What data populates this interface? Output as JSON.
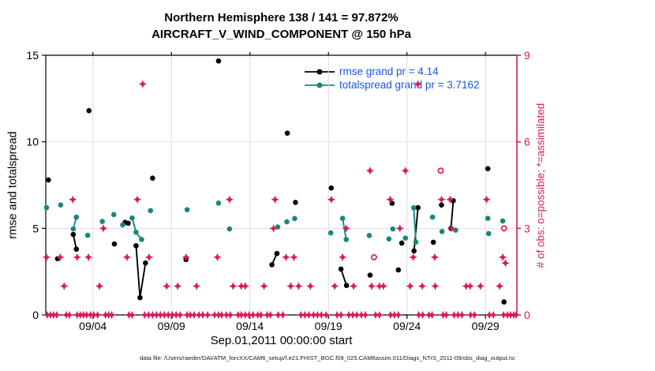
{
  "title": {
    "line1": "Northern Hemisphere 138 / 141 = 97.872%",
    "line2": "AIRCRAFT_V_WIND_COMPONENT @ 150 hPa"
  },
  "legend": [
    {
      "label": "rmse grand pr = 4.14",
      "series": "rmse"
    },
    {
      "label": "totalspread grand pr = 3.7162",
      "series": "totalspread"
    }
  ],
  "footer": "data file: /Users/raeder/DAI/ATM_forcXX/CAM6_setup/f.e21.FHIST_BGC.f09_025.CAM6assim.011/Diags_NTrS_2011-09/obs_diag_output.nc",
  "colors": {
    "black": "#000000",
    "teal": "#178780",
    "crimson": "#d81b5d",
    "legend_blue": "#1757e8",
    "grid_grey": "#dcdcdc",
    "grid_pink": "#f3d9e3"
  },
  "chart_data": {
    "type": "scatter",
    "title": "Northern Hemisphere 138 / 141 = 97.872% | AIRCRAFT_V_WIND_COMPONENT @ 150 hPa",
    "xlabel": "Sep.01,2011 00:00:00 start",
    "ylabel_left": "rmse and totalspread",
    "ylabel_right": "# of obs: o=possible; *=assimilated",
    "grid": "vertical grey at 5-day ticks; horizontal pink at right-axis 3 and 6",
    "x_axis": {
      "unit": "days since Sep 01 2011 00:00",
      "range_days": [
        0,
        30
      ],
      "tick_days": [
        3,
        8,
        13,
        18,
        23,
        28
      ],
      "tick_labels": [
        "09/04",
        "09/09",
        "09/14",
        "09/19",
        "09/24",
        "09/29"
      ]
    },
    "y_left": {
      "range": [
        0,
        15
      ],
      "ticks": [
        0,
        5,
        10,
        15
      ]
    },
    "y_right": {
      "range": [
        0,
        9
      ],
      "ticks": [
        0,
        3,
        6,
        9
      ]
    },
    "series": [
      {
        "name": "rmse",
        "axis": "left",
        "marker": "dot",
        "color": "#000000",
        "points": [
          [
            0.17,
            7.8
          ],
          [
            0.75,
            3.25
          ],
          [
            1.75,
            4.65
          ],
          [
            1.95,
            3.8
          ],
          [
            2.75,
            11.8
          ],
          [
            4.37,
            4.1
          ],
          [
            5.05,
            5.35
          ],
          [
            5.25,
            5.3
          ],
          [
            5.75,
            4.0
          ],
          [
            6.0,
            1.0
          ],
          [
            6.35,
            3.0
          ],
          [
            6.8,
            7.9
          ],
          [
            8.93,
            3.2
          ],
          [
            11.0,
            14.67
          ],
          [
            14.4,
            2.9
          ],
          [
            14.72,
            3.55
          ],
          [
            15.38,
            10.5
          ],
          [
            15.9,
            6.5
          ],
          [
            18.18,
            7.33
          ],
          [
            18.8,
            2.65
          ],
          [
            19.15,
            1.7
          ],
          [
            20.65,
            2.3
          ],
          [
            22.05,
            6.45
          ],
          [
            22.45,
            2.6
          ],
          [
            22.67,
            4.15
          ],
          [
            23.45,
            3.7
          ],
          [
            23.7,
            6.2
          ],
          [
            24.68,
            4.2
          ],
          [
            25.2,
            6.35
          ],
          [
            25.8,
            5.0
          ],
          [
            25.95,
            6.6
          ],
          [
            28.15,
            8.45
          ],
          [
            29.18,
            0.75
          ]
        ],
        "segments": [
          [
            [
              1.75,
              4.65
            ],
            [
              1.95,
              3.8
            ]
          ],
          [
            [
              5.75,
              4.0
            ],
            [
              6.0,
              1.0
            ],
            [
              6.35,
              3.0
            ]
          ],
          [
            [
              14.4,
              2.9
            ],
            [
              14.72,
              3.55
            ]
          ],
          [
            [
              18.8,
              2.65
            ],
            [
              19.15,
              1.7
            ]
          ],
          [
            [
              23.45,
              3.7
            ],
            [
              23.7,
              6.2
            ]
          ],
          [
            [
              25.8,
              5.0
            ],
            [
              25.95,
              6.6
            ]
          ]
        ]
      },
      {
        "name": "totalspread",
        "axis": "left",
        "marker": "dot",
        "color": "#178780",
        "points": [
          [
            0.05,
            6.2
          ],
          [
            0.95,
            6.35
          ],
          [
            1.75,
            4.97
          ],
          [
            1.95,
            5.65
          ],
          [
            2.67,
            4.6
          ],
          [
            3.6,
            5.4
          ],
          [
            4.33,
            5.8
          ],
          [
            4.9,
            5.2
          ],
          [
            5.5,
            5.6
          ],
          [
            5.75,
            4.78
          ],
          [
            6.1,
            4.36
          ],
          [
            6.67,
            6.03
          ],
          [
            9.0,
            6.08
          ],
          [
            11.0,
            6.46
          ],
          [
            11.7,
            4.97
          ],
          [
            14.77,
            5.08
          ],
          [
            15.35,
            5.38
          ],
          [
            15.85,
            5.57
          ],
          [
            18.15,
            4.74
          ],
          [
            18.9,
            5.58
          ],
          [
            19.13,
            4.36
          ],
          [
            20.6,
            4.59
          ],
          [
            21.85,
            4.39
          ],
          [
            22.1,
            4.97
          ],
          [
            22.9,
            4.44
          ],
          [
            23.43,
            6.19
          ],
          [
            23.57,
            4.21
          ],
          [
            24.63,
            5.65
          ],
          [
            25.23,
            4.82
          ],
          [
            26.1,
            4.9
          ],
          [
            28.15,
            5.58
          ],
          [
            28.2,
            4.7
          ],
          [
            29.1,
            5.43
          ]
        ],
        "segments": [
          [
            [
              1.75,
              4.97
            ],
            [
              1.95,
              5.65
            ]
          ],
          [
            [
              5.5,
              5.6
            ],
            [
              5.75,
              4.78
            ],
            [
              6.1,
              4.36
            ]
          ],
          [
            [
              18.9,
              5.58
            ],
            [
              19.13,
              4.36
            ]
          ],
          [
            [
              23.43,
              6.19
            ],
            [
              23.57,
              4.21
            ]
          ]
        ]
      },
      {
        "name": "nobs_assimilated",
        "axis": "right",
        "marker": "asterisk",
        "color": "#d81b5d",
        "points": [
          [
            0.05,
            2
          ],
          [
            0.92,
            2
          ],
          [
            1.17,
            1
          ],
          [
            1.72,
            4
          ],
          [
            2.0,
            2
          ],
          [
            2.72,
            2
          ],
          [
            3.42,
            1
          ],
          [
            3.67,
            3
          ],
          [
            5.17,
            2
          ],
          [
            5.83,
            4
          ],
          [
            6.17,
            8
          ],
          [
            6.58,
            2
          ],
          [
            7.7,
            1
          ],
          [
            8.4,
            1
          ],
          [
            8.93,
            2
          ],
          [
            9.6,
            1
          ],
          [
            10.93,
            2
          ],
          [
            11.7,
            4
          ],
          [
            11.93,
            1
          ],
          [
            12.45,
            1
          ],
          [
            12.7,
            1
          ],
          [
            13.9,
            1
          ],
          [
            14.5,
            3
          ],
          [
            14.6,
            4
          ],
          [
            15.3,
            2
          ],
          [
            15.6,
            1
          ],
          [
            15.8,
            2
          ],
          [
            16.1,
            1
          ],
          [
            16.85,
            1
          ],
          [
            18.18,
            4
          ],
          [
            18.4,
            1
          ],
          [
            18.9,
            2
          ],
          [
            19.13,
            3
          ],
          [
            19.6,
            1
          ],
          [
            20.65,
            5
          ],
          [
            20.75,
            1
          ],
          [
            21.25,
            1
          ],
          [
            21.5,
            1
          ],
          [
            21.93,
            4
          ],
          [
            22.55,
            3
          ],
          [
            22.9,
            5
          ],
          [
            23.2,
            1
          ],
          [
            23.4,
            2
          ],
          [
            23.7,
            8
          ],
          [
            23.97,
            1
          ],
          [
            24.77,
            2
          ],
          [
            24.8,
            1
          ],
          [
            25.2,
            4
          ],
          [
            25.75,
            4
          ],
          [
            25.85,
            3
          ],
          [
            26.77,
            1
          ],
          [
            27.02,
            1
          ],
          [
            27.68,
            1
          ],
          [
            28.07,
            4
          ],
          [
            28.9,
            1
          ],
          [
            29.1,
            2
          ],
          [
            29.27,
            1.8
          ]
        ],
        "zero_bin_days": [
          0.1,
          0.3,
          0.5,
          0.7,
          1.3,
          1.5,
          2.0,
          2.2,
          2.4,
          2.6,
          2.85,
          3.05,
          3.3,
          3.8,
          4.0,
          4.2,
          5.3,
          5.5,
          6.3,
          6.55,
          6.8,
          7.05,
          7.3,
          7.55,
          7.8,
          8.05,
          8.3,
          8.55,
          9.0,
          9.2,
          9.45,
          9.75,
          10.0,
          10.3,
          10.75,
          11.0,
          11.2,
          11.5,
          11.75,
          12.25,
          12.45,
          12.7,
          12.95,
          13.2,
          13.5,
          13.7,
          14.1,
          14.3,
          14.8,
          15.1,
          16.25,
          16.5,
          16.75,
          17.05,
          17.3,
          17.55,
          17.85,
          18.55,
          18.8,
          19.3,
          19.55,
          19.8,
          20.1,
          20.35,
          21.0,
          21.25,
          21.95,
          22.2,
          22.45,
          23.75,
          24.0,
          24.4,
          24.6,
          25.3,
          25.5,
          26.0,
          26.25,
          26.5,
          27.05,
          27.3,
          28.25,
          28.5,
          29.15,
          29.4,
          29.6,
          29.8,
          29.95
        ]
      },
      {
        "name": "nobs_possible",
        "axis": "right",
        "marker": "open-circle",
        "color": "#d81b5d",
        "points": [
          [
            20.9,
            2
          ],
          [
            25.15,
            5
          ],
          [
            29.18,
            3
          ]
        ]
      }
    ]
  }
}
